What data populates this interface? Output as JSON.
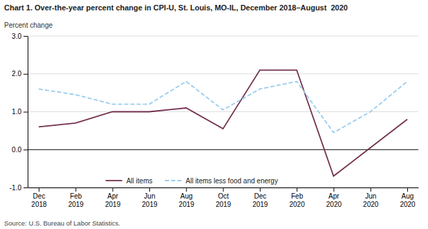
{
  "chart_data": {
    "type": "line",
    "title": "Chart 1. Over-the-year percent change in CPI-U, St. Louis, MO-IL, December 2018–August  2020",
    "ylabel": "Percent change",
    "source": "Source: U.S. Bureau of Labor Statistics.",
    "categories": [
      "Dec\n2018",
      "Feb\n2019",
      "Apr\n2019",
      "Jun\n2019",
      "Aug\n2019",
      "Oct\n2019",
      "Dec\n2019",
      "Feb\n2020",
      "Apr\n2020",
      "Jun\n2020",
      "Aug\n2020"
    ],
    "series": [
      {
        "name": "All items",
        "color": "#722F4E",
        "line_style": "solid",
        "values": [
          0.6,
          0.7,
          1.0,
          1.0,
          1.1,
          0.55,
          2.1,
          2.1,
          -0.7,
          0.05,
          0.8
        ]
      },
      {
        "name": "All items less food and energy",
        "color": "#99CCEE",
        "line_style": "dashed",
        "values": [
          1.6,
          1.45,
          1.2,
          1.2,
          1.8,
          1.05,
          1.6,
          1.8,
          0.45,
          1.0,
          1.8
        ]
      }
    ],
    "ylim": [
      -1.0,
      3.0
    ],
    "yticks": [
      {
        "value": -1.0,
        "label": "-1.0"
      },
      {
        "value": 0.0,
        "label": "0.0"
      },
      {
        "value": 1.0,
        "label": "1.0"
      },
      {
        "value": 2.0,
        "label": "2.0"
      },
      {
        "value": 3.0,
        "label": "3.0"
      }
    ],
    "grid": true,
    "legend": "lower center"
  }
}
